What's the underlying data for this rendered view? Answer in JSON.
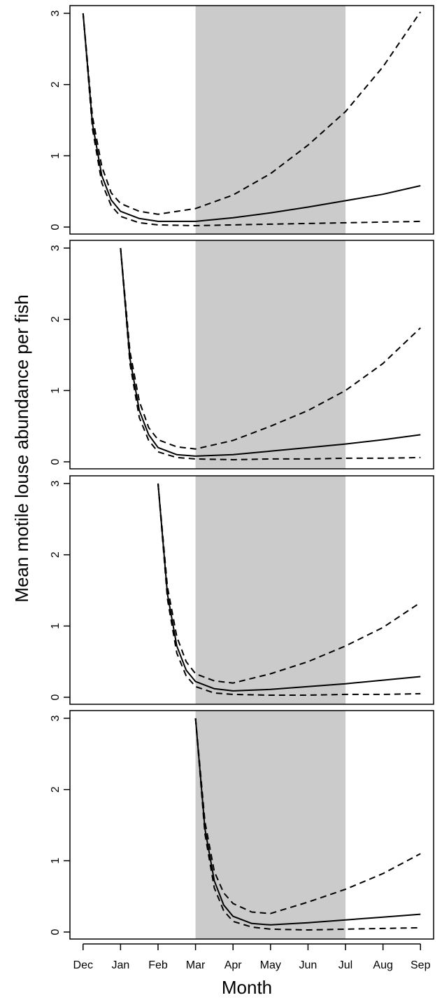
{
  "chart_data": {
    "type": "line",
    "xlabel": "Month",
    "ylabel": "Mean motile louse abundance per fish",
    "x_tick_labels": [
      "Dec",
      "Jan",
      "Feb",
      "Mar",
      "Apr",
      "May",
      "Jun",
      "Jul",
      "Aug",
      "Sep"
    ],
    "x_tick_values": [
      0,
      1,
      2,
      3,
      4,
      5,
      6,
      7,
      8,
      9
    ],
    "y_ticks": [
      0,
      1,
      2,
      3
    ],
    "ylim": [
      0,
      3.1
    ],
    "xlim": [
      -0.35,
      9.35
    ],
    "shaded_region": {
      "x_start": 3,
      "x_end": 7,
      "color": "#cbcbcb"
    },
    "grid": false,
    "legend": "none",
    "panels": [
      {
        "start_month": 0,
        "series": [
          {
            "style": "dashed",
            "points": [
              [
                0,
                3.0
              ],
              [
                0.25,
                1.55
              ],
              [
                0.5,
                0.85
              ],
              [
                0.75,
                0.48
              ],
              [
                1,
                0.33
              ],
              [
                1.5,
                0.22
              ],
              [
                2,
                0.18
              ],
              [
                3,
                0.26
              ],
              [
                4,
                0.45
              ],
              [
                5,
                0.75
              ],
              [
                6,
                1.15
              ],
              [
                7,
                1.62
              ],
              [
                8,
                2.25
              ],
              [
                9,
                3.02
              ]
            ]
          },
          {
            "style": "solid",
            "points": [
              [
                0,
                3.0
              ],
              [
                0.25,
                1.45
              ],
              [
                0.5,
                0.72
              ],
              [
                0.75,
                0.38
              ],
              [
                1,
                0.22
              ],
              [
                1.5,
                0.12
              ],
              [
                2,
                0.08
              ],
              [
                3,
                0.08
              ],
              [
                4,
                0.13
              ],
              [
                5,
                0.2
              ],
              [
                6,
                0.28
              ],
              [
                7,
                0.37
              ],
              [
                8,
                0.46
              ],
              [
                9,
                0.58
              ]
            ]
          },
          {
            "style": "dashed",
            "points": [
              [
                0,
                3.0
              ],
              [
                0.25,
                1.38
              ],
              [
                0.5,
                0.62
              ],
              [
                0.75,
                0.3
              ],
              [
                1,
                0.15
              ],
              [
                1.5,
                0.06
              ],
              [
                2,
                0.03
              ],
              [
                3,
                0.02
              ],
              [
                4,
                0.03
              ],
              [
                5,
                0.04
              ],
              [
                6,
                0.05
              ],
              [
                7,
                0.06
              ],
              [
                8,
                0.07
              ],
              [
                9,
                0.08
              ]
            ]
          }
        ]
      },
      {
        "start_month": 1,
        "series": [
          {
            "style": "dashed",
            "points": [
              [
                1,
                3.0
              ],
              [
                1.25,
                1.55
              ],
              [
                1.5,
                0.85
              ],
              [
                1.75,
                0.48
              ],
              [
                2,
                0.31
              ],
              [
                2.5,
                0.21
              ],
              [
                3,
                0.18
              ],
              [
                4,
                0.3
              ],
              [
                5,
                0.5
              ],
              [
                6,
                0.72
              ],
              [
                7,
                1.0
              ],
              [
                8,
                1.38
              ],
              [
                9,
                1.88
              ]
            ]
          },
          {
            "style": "solid",
            "points": [
              [
                1,
                3.0
              ],
              [
                1.25,
                1.45
              ],
              [
                1.5,
                0.72
              ],
              [
                1.75,
                0.38
              ],
              [
                2,
                0.2
              ],
              [
                2.5,
                0.1
              ],
              [
                3,
                0.08
              ],
              [
                4,
                0.1
              ],
              [
                5,
                0.15
              ],
              [
                6,
                0.2
              ],
              [
                7,
                0.25
              ],
              [
                8,
                0.31
              ],
              [
                9,
                0.38
              ]
            ]
          },
          {
            "style": "dashed",
            "points": [
              [
                1,
                3.0
              ],
              [
                1.25,
                1.38
              ],
              [
                1.5,
                0.62
              ],
              [
                1.75,
                0.3
              ],
              [
                2,
                0.14
              ],
              [
                2.5,
                0.06
              ],
              [
                3,
                0.04
              ],
              [
                4,
                0.03
              ],
              [
                5,
                0.04
              ],
              [
                6,
                0.04
              ],
              [
                7,
                0.05
              ],
              [
                8,
                0.05
              ],
              [
                9,
                0.06
              ]
            ]
          }
        ]
      },
      {
        "start_month": 2,
        "series": [
          {
            "style": "dashed",
            "points": [
              [
                2,
                3.0
              ],
              [
                2.25,
                1.55
              ],
              [
                2.5,
                0.85
              ],
              [
                2.75,
                0.5
              ],
              [
                3,
                0.33
              ],
              [
                3.5,
                0.23
              ],
              [
                4,
                0.2
              ],
              [
                5,
                0.33
              ],
              [
                6,
                0.5
              ],
              [
                7,
                0.72
              ],
              [
                8,
                0.98
              ],
              [
                9,
                1.33
              ]
            ]
          },
          {
            "style": "solid",
            "points": [
              [
                2,
                3.0
              ],
              [
                2.25,
                1.45
              ],
              [
                2.5,
                0.72
              ],
              [
                2.75,
                0.38
              ],
              [
                3,
                0.22
              ],
              [
                3.5,
                0.12
              ],
              [
                4,
                0.09
              ],
              [
                5,
                0.11
              ],
              [
                6,
                0.15
              ],
              [
                7,
                0.19
              ],
              [
                8,
                0.24
              ],
              [
                9,
                0.29
              ]
            ]
          },
          {
            "style": "dashed",
            "points": [
              [
                2,
                3.0
              ],
              [
                2.25,
                1.38
              ],
              [
                2.5,
                0.62
              ],
              [
                2.75,
                0.3
              ],
              [
                3,
                0.15
              ],
              [
                3.5,
                0.06
              ],
              [
                4,
                0.04
              ],
              [
                5,
                0.03
              ],
              [
                6,
                0.03
              ],
              [
                7,
                0.04
              ],
              [
                8,
                0.04
              ],
              [
                9,
                0.05
              ]
            ]
          }
        ]
      },
      {
        "start_month": 3,
        "series": [
          {
            "style": "dashed",
            "points": [
              [
                3,
                3.0
              ],
              [
                3.25,
                1.55
              ],
              [
                3.5,
                0.85
              ],
              [
                3.75,
                0.55
              ],
              [
                4,
                0.4
              ],
              [
                4.5,
                0.28
              ],
              [
                5,
                0.26
              ],
              [
                6,
                0.42
              ],
              [
                7,
                0.6
              ],
              [
                8,
                0.82
              ],
              [
                9,
                1.1
              ]
            ]
          },
          {
            "style": "solid",
            "points": [
              [
                3,
                3.0
              ],
              [
                3.25,
                1.45
              ],
              [
                3.5,
                0.72
              ],
              [
                3.75,
                0.38
              ],
              [
                4,
                0.22
              ],
              [
                4.5,
                0.12
              ],
              [
                5,
                0.1
              ],
              [
                6,
                0.13
              ],
              [
                7,
                0.17
              ],
              [
                8,
                0.21
              ],
              [
                9,
                0.25
              ]
            ]
          },
          {
            "style": "dashed",
            "points": [
              [
                3,
                3.0
              ],
              [
                3.25,
                1.38
              ],
              [
                3.5,
                0.62
              ],
              [
                3.75,
                0.3
              ],
              [
                4,
                0.15
              ],
              [
                4.5,
                0.07
              ],
              [
                5,
                0.04
              ],
              [
                6,
                0.03
              ],
              [
                7,
                0.04
              ],
              [
                8,
                0.05
              ],
              [
                9,
                0.06
              ]
            ]
          }
        ]
      }
    ]
  }
}
